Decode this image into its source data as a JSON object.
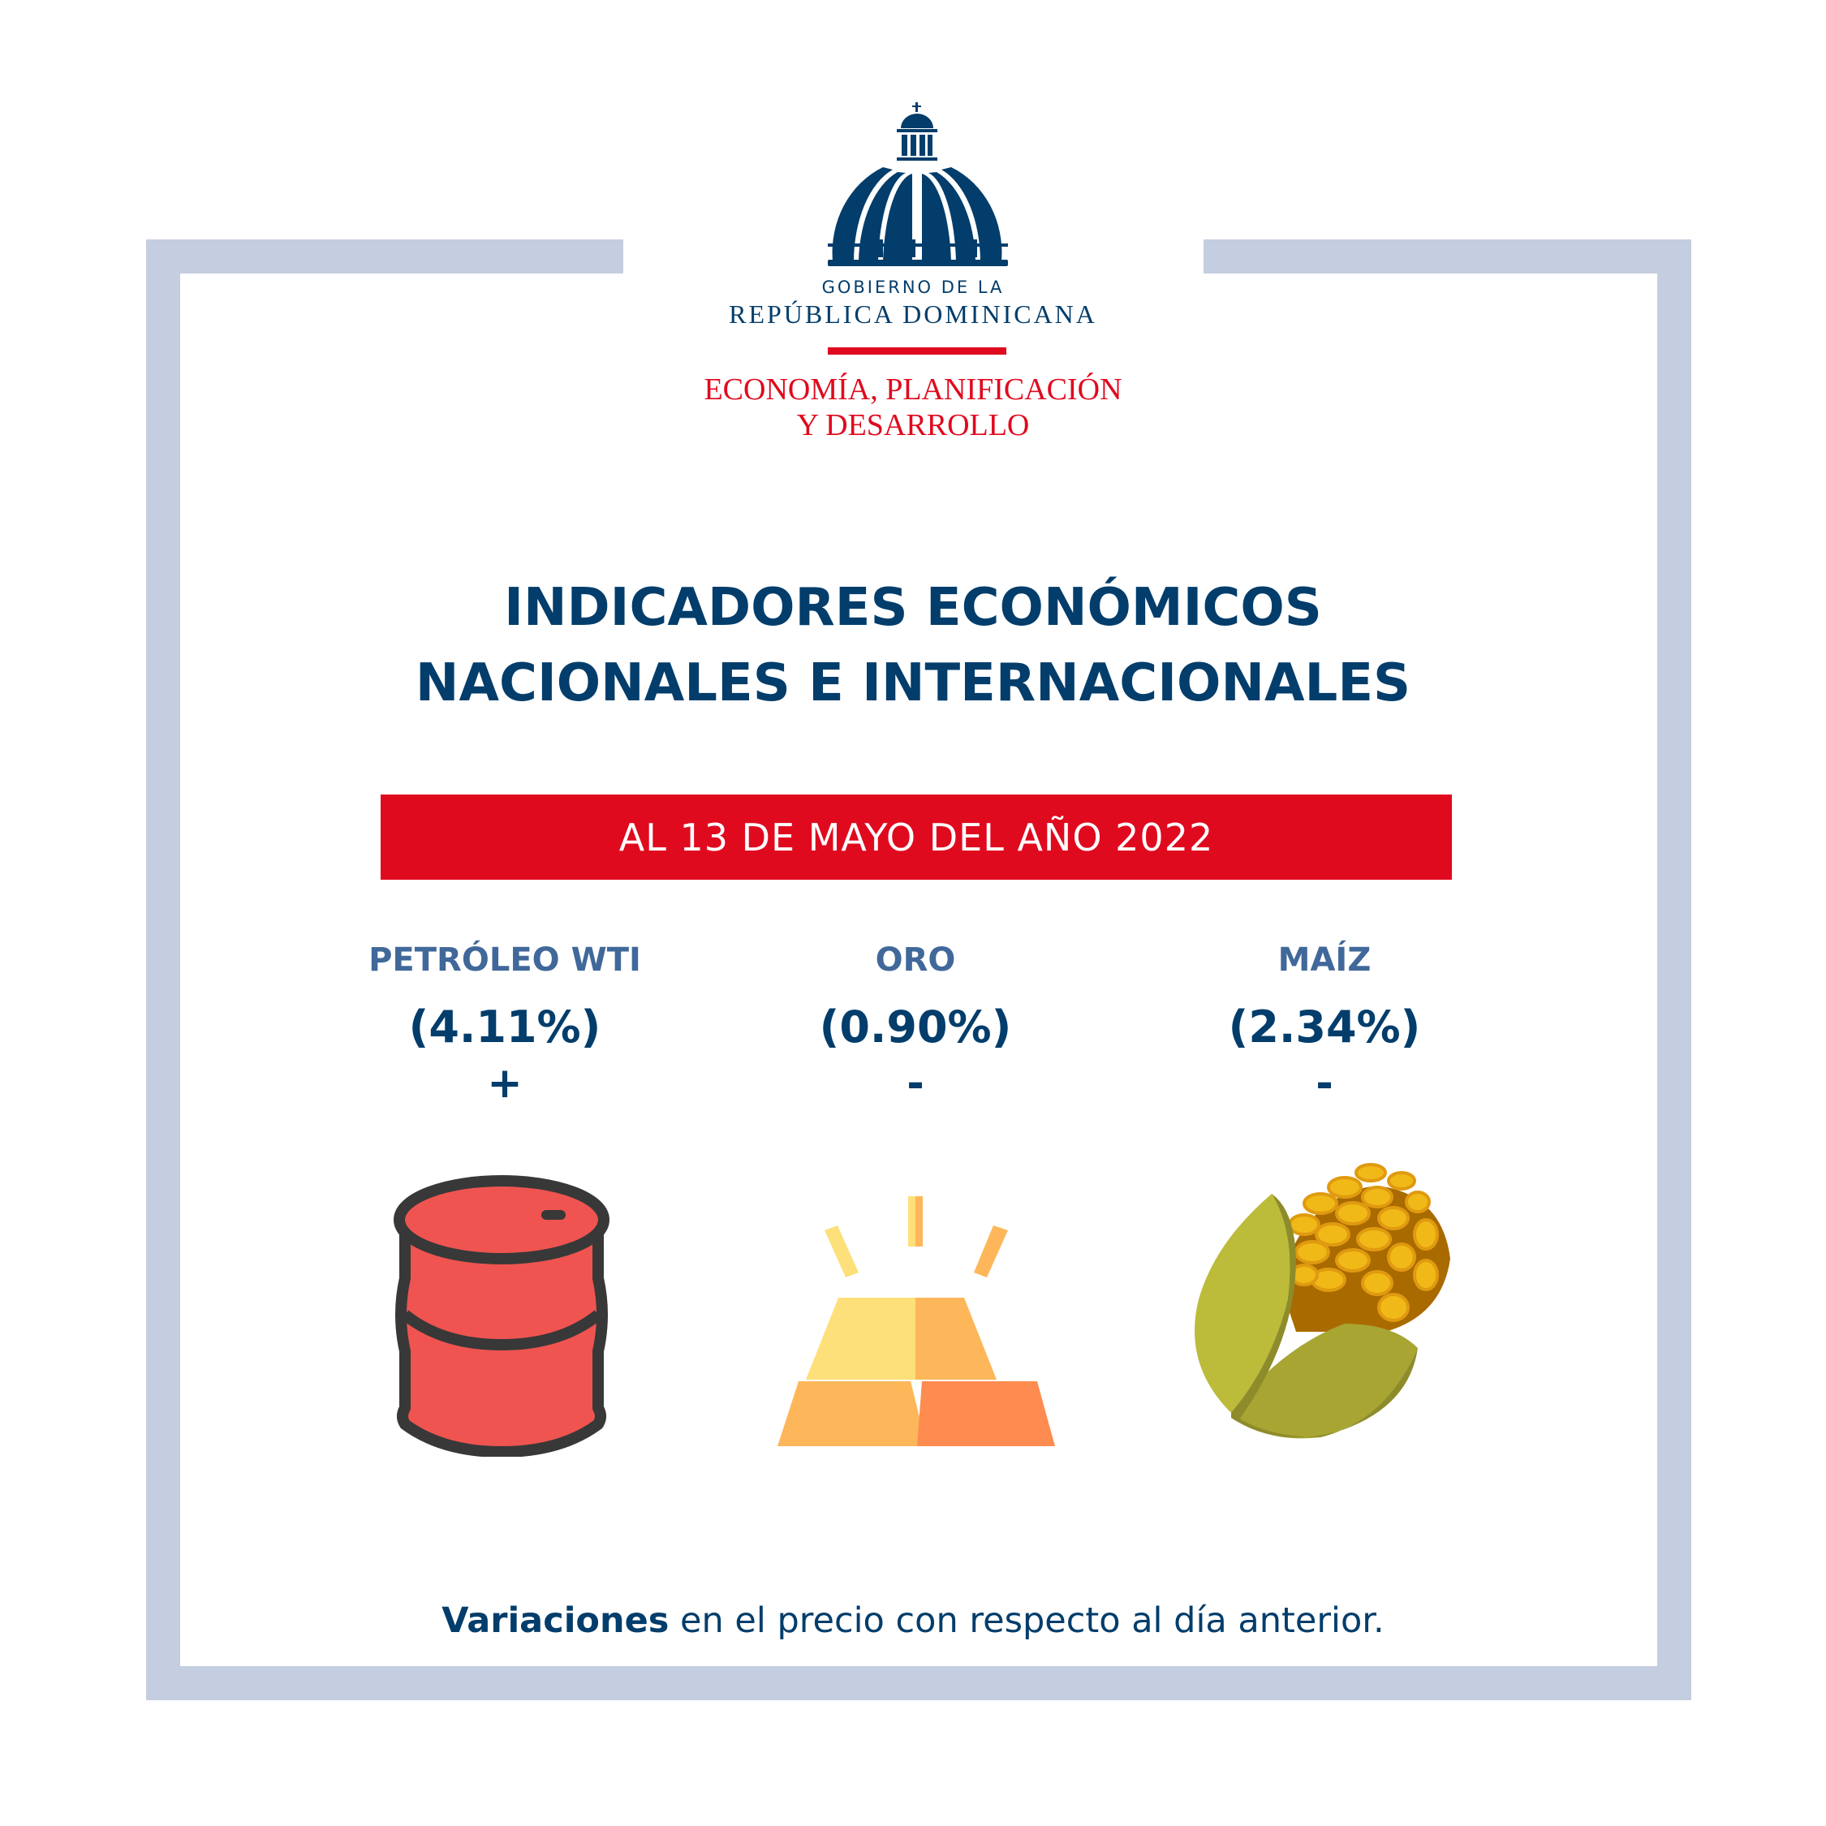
{
  "logo": {
    "line1": "GOBIERNO DE LA",
    "line2": "REPÚBLICA DOMINICANA",
    "ministry_line1": "ECONOMÍA, PLANIFICACIÓN",
    "ministry_line2": "Y DESARROLLO"
  },
  "title": {
    "line1": "INDICADORES ECONÓMICOS",
    "line2": "NACIONALES E INTERNACIONALES"
  },
  "date_banner": "AL 13 DE MAYO DEL AÑO 2022",
  "indicators": [
    {
      "label": "PETRÓLEO WTI",
      "value": "(4.11%)",
      "sign": "+",
      "icon": "oil-barrel-icon"
    },
    {
      "label": "ORO",
      "value": "(0.90%)",
      "sign": "-",
      "icon": "gold-bars-icon"
    },
    {
      "label": "MAÍZ",
      "value": "(2.34%)",
      "sign": "-",
      "icon": "corn-icon"
    }
  ],
  "footer": {
    "bold": "Variaciones",
    "rest": " en el precio con respecto al día anterior."
  },
  "colors": {
    "navy": "#023d6b",
    "red": "#e00a1e",
    "label_blue": "#41689a",
    "frame": "#c5cde0"
  }
}
